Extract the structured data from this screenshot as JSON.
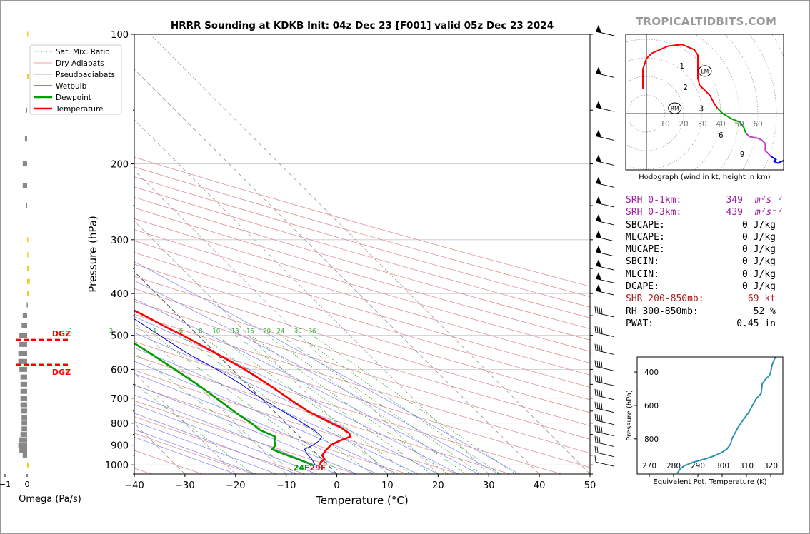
{
  "title": "HRRR Sounding at KDKB Init: 04z Dec 23 [F001] valid 05z Dec 23 2024",
  "brand": "TROPICALTIDBITS.COM",
  "colors": {
    "temperature": "#ff0000",
    "dewpoint": "#00a000",
    "wetbulb": "#0000dd",
    "dry_adiabats": "#e08080",
    "pseudoadiabats": "#8080ff",
    "mixing": "#33aa33",
    "srh": "#a020a0",
    "shr": "#b02020",
    "theta_e": "#3090b0",
    "omega_pos": "#f0d020",
    "omega_neg": "#888888"
  },
  "chart_data": [
    {
      "type": "line",
      "name": "skewt",
      "title": "HRRR Sounding at KDKB Init: 04z Dec 23 [F001] valid 05z Dec 23 2024",
      "xlabel": "Temperature (°C)",
      "ylabel": "Pressure (hPa)",
      "xlim": [
        -40,
        50
      ],
      "ylim": [
        1050,
        100
      ],
      "y_scale": "log",
      "x_ticks": [
        "−40",
        "−30",
        "−20",
        "−10",
        "0",
        "10",
        "20",
        "30",
        "40",
        "50"
      ],
      "x_tick_values": [
        -40,
        -30,
        -20,
        -10,
        0,
        10,
        20,
        30,
        40,
        50
      ],
      "y_ticks": [
        "100",
        "200",
        "300",
        "400",
        "500",
        "600",
        "700",
        "800",
        "900",
        "1000"
      ],
      "y_tick_values": [
        100,
        200,
        300,
        400,
        500,
        600,
        700,
        800,
        900,
        1000
      ],
      "legend": [
        "Sat. Mix. Ratio",
        "Dry Adiabats",
        "Pseudoadiabats",
        "Wetbulb",
        "Dewpoint",
        "Temperature"
      ],
      "legend_position": "top-left",
      "mixing_ratio_labels": [
        "1",
        "2",
        "4",
        "6",
        "8",
        "10",
        "13",
        "16",
        "20",
        "24",
        "30",
        "36"
      ],
      "mixing_ratio_values": [
        1,
        2,
        4,
        6,
        8,
        10,
        13,
        16,
        20,
        24,
        30,
        36
      ],
      "surface_label_dewpoint": "24F",
      "surface_label_temperature": "29F",
      "series": [
        {
          "name": "Temperature",
          "points": [
            [
              1000,
              -1.5
            ],
            [
              985,
              -0.8
            ],
            [
              970,
              0.5
            ],
            [
              950,
              0.8
            ],
            [
              925,
              2.5
            ],
            [
              900,
              4.5
            ],
            [
              880,
              7.0
            ],
            [
              860,
              10.0
            ],
            [
              845,
              10.5
            ],
            [
              820,
              10.0
            ],
            [
              800,
              9.0
            ],
            [
              780,
              8.0
            ],
            [
              750,
              6.7
            ],
            [
              700,
              5.4
            ],
            [
              650,
              4.2
            ],
            [
              600,
              2.5
            ],
            [
              550,
              0.0
            ],
            [
              500,
              -3.0
            ],
            [
              480,
              -4.6
            ],
            [
              450,
              -6.7
            ],
            [
              420,
              -9.2
            ],
            [
              400,
              -11.2
            ],
            [
              350,
              -16.6
            ],
            [
              300,
              -22.2
            ],
            [
              250,
              -28.5
            ],
            [
              225,
              -32.0
            ],
            [
              200,
              -35.8
            ],
            [
              175,
              -41.3
            ],
            [
              150,
              -48.0
            ],
            [
              125,
              -53.5
            ],
            [
              100,
              -61.3
            ]
          ]
        },
        {
          "name": "Dewpoint",
          "points": [
            [
              1000,
              -3.0
            ],
            [
              970,
              -4.8
            ],
            [
              950,
              -6.1
            ],
            [
              920,
              -7.9
            ],
            [
              900,
              -6.4
            ],
            [
              880,
              -5.8
            ],
            [
              860,
              -4.8
            ],
            [
              830,
              -6.5
            ],
            [
              800,
              -6.8
            ],
            [
              760,
              -7.8
            ],
            [
              700,
              -8.8
            ],
            [
              650,
              -9.8
            ],
            [
              600,
              -11.3
            ],
            [
              550,
              -13.0
            ],
            [
              500,
              -15.1
            ],
            [
              480,
              -17.8
            ],
            [
              460,
              -20.4
            ],
            [
              430,
              -25.3
            ],
            [
              400,
              -30.0
            ],
            [
              375,
              -30.6
            ],
            [
              350,
              -28.5
            ],
            [
              325,
              -29.5
            ],
            [
              300,
              -32.8
            ],
            [
              275,
              -35.0
            ],
            [
              250,
              -38.0
            ],
            [
              230,
              -40.8
            ],
            [
              200,
              -45.6
            ],
            [
              175,
              -48.7
            ],
            [
              150,
              -52.6
            ],
            [
              125,
              -59.5
            ],
            [
              100,
              -69.0
            ]
          ]
        },
        {
          "name": "Wetbulb",
          "points": [
            [
              1000,
              -2.5
            ],
            [
              970,
              -2.0
            ],
            [
              950,
              -2.0
            ],
            [
              920,
              -1.5
            ],
            [
              900,
              1.0
            ],
            [
              880,
              3.0
            ],
            [
              860,
              4.4
            ],
            [
              840,
              4.3
            ],
            [
              800,
              3.4
            ],
            [
              760,
              2.0
            ],
            [
              700,
              0.0
            ],
            [
              650,
              -1.1
            ],
            [
              600,
              -3.0
            ],
            [
              550,
              -5.7
            ],
            [
              500,
              -7.6
            ],
            [
              450,
              -9.7
            ],
            [
              400,
              -13.0
            ],
            [
              350,
              -18.0
            ],
            [
              300,
              -23.0
            ],
            [
              250,
              -29.0
            ],
            [
              200,
              -36.0
            ],
            [
              150,
              -48.0
            ],
            [
              125,
              -54.0
            ],
            [
              100,
              -61.5
            ]
          ]
        }
      ],
      "wind_barbs": [
        {
          "p": 100,
          "kt": "50+"
        },
        {
          "p": 125,
          "kt": "50+"
        },
        {
          "p": 150,
          "kt": "50+"
        },
        {
          "p": 175,
          "kt": "50+"
        },
        {
          "p": 200,
          "kt": "50+"
        },
        {
          "p": 225,
          "kt": "50+"
        },
        {
          "p": 250,
          "kt": "50+"
        },
        {
          "p": 275,
          "kt": "50+"
        },
        {
          "p": 300,
          "kt": "50+"
        },
        {
          "p": 325,
          "kt": "50+"
        },
        {
          "p": 350,
          "kt": "50+"
        },
        {
          "p": 375,
          "kt": "50+"
        },
        {
          "p": 400,
          "kt": "50+"
        },
        {
          "p": 450,
          "kt": "45"
        },
        {
          "p": 500,
          "kt": "40"
        },
        {
          "p": 550,
          "kt": "40"
        },
        {
          "p": 600,
          "kt": "40"
        },
        {
          "p": 650,
          "kt": "40"
        },
        {
          "p": 700,
          "kt": "45"
        },
        {
          "p": 750,
          "kt": "40"
        },
        {
          "p": 800,
          "kt": "45"
        },
        {
          "p": 850,
          "kt": "40"
        },
        {
          "p": 900,
          "kt": "35"
        },
        {
          "p": 950,
          "kt": "25"
        },
        {
          "p": 1000,
          "kt": "15"
        }
      ]
    },
    {
      "type": "bar",
      "name": "omega",
      "xlabel": "Omega (Pa/s)",
      "x_ticks": [
        "0",
        "−1",
        "−2"
      ],
      "x_tick_values": [
        0,
        -1,
        -2
      ],
      "dgz_label": "DGZ",
      "dgz_pressures": [
        512,
        585
      ],
      "values": [
        {
          "p": 100,
          "v": 0.05
        },
        {
          "p": 125,
          "v": 0.08
        },
        {
          "p": 150,
          "v": -0.05
        },
        {
          "p": 175,
          "v": -0.1
        },
        {
          "p": 200,
          "v": -0.2
        },
        {
          "p": 225,
          "v": -0.2
        },
        {
          "p": 250,
          "v": -0.05
        },
        {
          "p": 300,
          "v": 0.05
        },
        {
          "p": 325,
          "v": 0.05
        },
        {
          "p": 350,
          "v": 0.1
        },
        {
          "p": 375,
          "v": 0.12
        },
        {
          "p": 400,
          "v": 0.1
        },
        {
          "p": 425,
          "v": -0.02
        },
        {
          "p": 450,
          "v": -0.2
        },
        {
          "p": 475,
          "v": -0.25
        },
        {
          "p": 500,
          "v": -0.35
        },
        {
          "p": 525,
          "v": -0.35
        },
        {
          "p": 550,
          "v": -0.4
        },
        {
          "p": 575,
          "v": -0.4
        },
        {
          "p": 600,
          "v": -0.35
        },
        {
          "p": 625,
          "v": -0.3
        },
        {
          "p": 650,
          "v": -0.3
        },
        {
          "p": 675,
          "v": -0.3
        },
        {
          "p": 700,
          "v": -0.3
        },
        {
          "p": 725,
          "v": -0.3
        },
        {
          "p": 750,
          "v": -0.28
        },
        {
          "p": 775,
          "v": -0.25
        },
        {
          "p": 800,
          "v": -0.25
        },
        {
          "p": 825,
          "v": -0.25
        },
        {
          "p": 850,
          "v": -0.3
        },
        {
          "p": 875,
          "v": -0.35
        },
        {
          "p": 900,
          "v": -0.4
        },
        {
          "p": 925,
          "v": -0.35
        },
        {
          "p": 950,
          "v": -0.2
        },
        {
          "p": 1000,
          "v": 0.1
        }
      ]
    },
    {
      "type": "line",
      "name": "hodograph",
      "xlabel": "Hodograph (wind in kt, height in km)",
      "ring_labels": [
        "10",
        "20",
        "30",
        "40",
        "50",
        "60"
      ],
      "ring_values": [
        10,
        20,
        30,
        40,
        50,
        60
      ],
      "height_labels": [
        {
          "km": "1",
          "u": 20,
          "v": 27
        },
        {
          "km": "2",
          "u": 22,
          "v": 15
        },
        {
          "km": "3",
          "u": 31,
          "v": 3
        },
        {
          "km": "6",
          "u": 42,
          "v": -12
        },
        {
          "km": "9",
          "u": 54,
          "v": -23
        }
      ],
      "storm_motion": [
        {
          "label": "LM",
          "u": 33,
          "v": 24
        },
        {
          "label": "RM",
          "u": 16,
          "v": 3
        }
      ],
      "segments": [
        {
          "color": "red",
          "points": [
            [
              -2,
              14
            ],
            [
              -2,
              25
            ],
            [
              0,
              31
            ],
            [
              3,
              34
            ],
            [
              12,
              38
            ],
            [
              20,
              39
            ],
            [
              27,
              36
            ],
            [
              29,
              33
            ],
            [
              29,
              24
            ],
            [
              29,
              20
            ],
            [
              30,
              16
            ],
            [
              32,
              14
            ],
            [
              34,
              12
            ],
            [
              36,
              10
            ],
            [
              38,
              6
            ],
            [
              40,
              3
            ]
          ]
        },
        {
          "color": "green",
          "points": [
            [
              40,
              3
            ],
            [
              43,
              0
            ],
            [
              48,
              -3
            ],
            [
              53,
              -5
            ],
            [
              55,
              -8
            ],
            [
              56,
              -11
            ]
          ]
        },
        {
          "color": "magenta",
          "points": [
            [
              56,
              -11
            ],
            [
              58,
              -13
            ],
            [
              63,
              -14
            ],
            [
              65,
              -15
            ],
            [
              67,
              -17
            ],
            [
              67,
              -21
            ],
            [
              70,
              -24
            ]
          ]
        },
        {
          "color": "blue",
          "points": [
            [
              70,
              -24
            ],
            [
              73,
              -26
            ],
            [
              72,
              -27
            ],
            [
              74,
              -28
            ],
            [
              81,
              -25
            ],
            [
              86,
              -22
            ]
          ]
        }
      ]
    },
    {
      "type": "line",
      "name": "theta_e",
      "xlabel": "Equivalent Pot. Temperature (K)",
      "ylabel": "Pressure (hPa)",
      "xlim": [
        265,
        325
      ],
      "x_ticks": [
        "270",
        "280",
        "290",
        "300",
        "310",
        "320"
      ],
      "x_tick_values": [
        270,
        280,
        290,
        300,
        310,
        320
      ],
      "y_ticks": [
        "400",
        "600",
        "800"
      ],
      "y_tick_values": [
        400,
        600,
        800
      ],
      "ylim": [
        1010,
        310
      ],
      "points": [
        [
          1005,
          281.5
        ],
        [
          995,
          282
        ],
        [
          985,
          282.5
        ],
        [
          975,
          283
        ],
        [
          960,
          284.5
        ],
        [
          940,
          288
        ],
        [
          920,
          293
        ],
        [
          900,
          297
        ],
        [
          880,
          300
        ],
        [
          860,
          302
        ],
        [
          830,
          303.5
        ],
        [
          800,
          304
        ],
        [
          760,
          305.5
        ],
        [
          720,
          307
        ],
        [
          680,
          309
        ],
        [
          640,
          311
        ],
        [
          600,
          312.5
        ],
        [
          560,
          314
        ],
        [
          530,
          316
        ],
        [
          500,
          316.3
        ],
        [
          470,
          316.5
        ],
        [
          440,
          318
        ],
        [
          420,
          319.5
        ],
        [
          400,
          320
        ],
        [
          360,
          320.5
        ],
        [
          330,
          321.3
        ],
        [
          310,
          322
        ]
      ]
    }
  ],
  "stats": [
    {
      "label": "SRH 0-1km:",
      "value": "349",
      "unit": "m²s⁻²",
      "color": "#a020a0"
    },
    {
      "label": "SRH 0-3km:",
      "value": "439",
      "unit": "m²s⁻²",
      "color": "#a020a0"
    },
    {
      "label": "SBCAPE:",
      "value": "0 J/kg",
      "unit": "",
      "color": "#000000"
    },
    {
      "label": "MLCAPE:",
      "value": "0 J/kg",
      "unit": "",
      "color": "#000000"
    },
    {
      "label": "MUCAPE:",
      "value": "0 J/kg",
      "unit": "",
      "color": "#000000"
    },
    {
      "label": "SBCIN:",
      "value": "0 J/kg",
      "unit": "",
      "color": "#000000"
    },
    {
      "label": "MLCIN:",
      "value": "0 J/kg",
      "unit": "",
      "color": "#000000"
    },
    {
      "label": "DCAPE:",
      "value": "0 J/kg",
      "unit": "",
      "color": "#000000"
    },
    {
      "label": "SHR 200-850mb:",
      "value": "69 kt",
      "unit": "",
      "color": "#b02020"
    },
    {
      "label": "RH 300-850mb:",
      "value": "52 %",
      "unit": "",
      "color": "#000000"
    },
    {
      "label": "PWAT:",
      "value": "0.45 in",
      "unit": "",
      "color": "#000000"
    }
  ]
}
